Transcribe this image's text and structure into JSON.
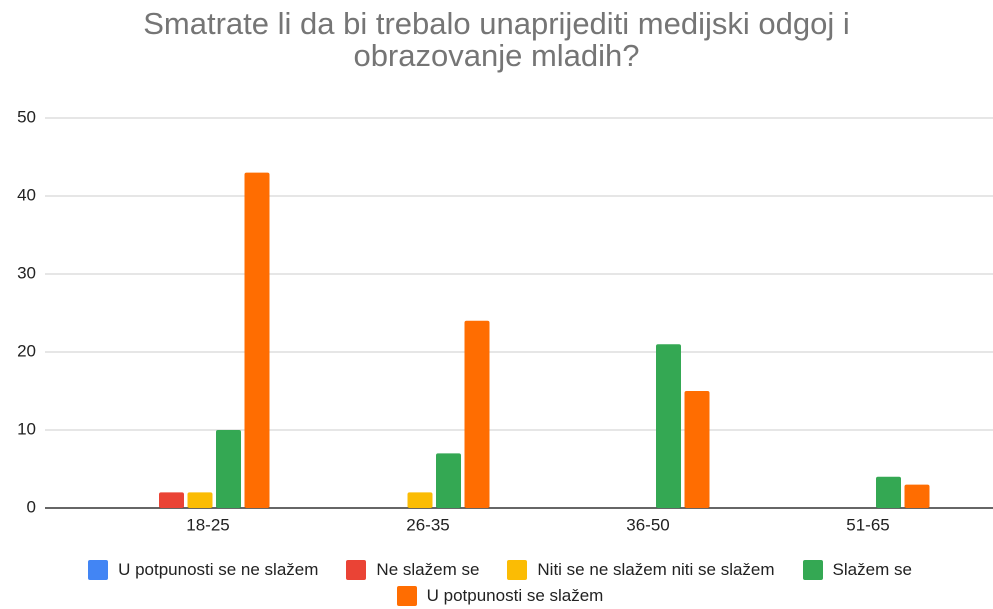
{
  "chart_data": {
    "type": "bar",
    "title": "Smatrate li da bi trebalo unaprijediti medijski odgoj i obrazovanje mladih?",
    "categories": [
      "18-25",
      "26-35",
      "36-50",
      "51-65"
    ],
    "series": [
      {
        "name": "U potpunosti se ne slažem",
        "color": "#4285f4",
        "values": [
          0,
          0,
          0,
          0
        ]
      },
      {
        "name": "Ne slažem se",
        "color": "#ea4335",
        "values": [
          2,
          0,
          0,
          0
        ]
      },
      {
        "name": "Niti se ne slažem niti se slažem",
        "color": "#fbbc04",
        "values": [
          2,
          2,
          0,
          0
        ]
      },
      {
        "name": "Slažem se",
        "color": "#34a853",
        "values": [
          10,
          7,
          21,
          4
        ]
      },
      {
        "name": "U potpunosti se slažem",
        "color": "#ff6d01",
        "values": [
          43,
          24,
          15,
          3
        ]
      }
    ],
    "ylim": [
      0,
      50
    ],
    "yticks": [
      0,
      10,
      20,
      30,
      40,
      50
    ],
    "grid": true,
    "legend": "bottom"
  }
}
